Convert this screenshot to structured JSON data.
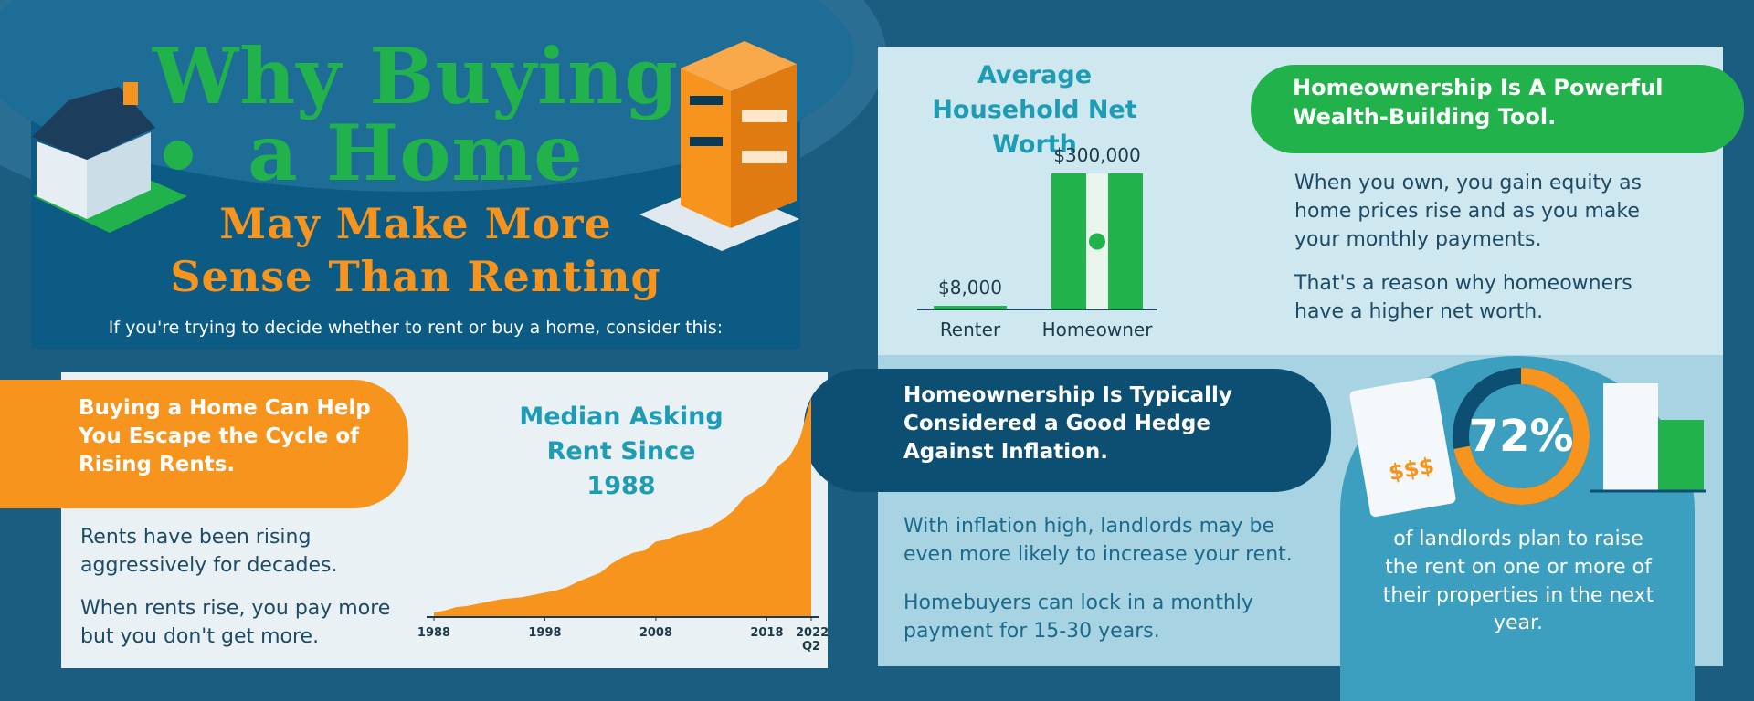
{
  "header": {
    "title_line1": "Why Buying",
    "title_line2": "a Home",
    "subtitle_line1": "May Make More",
    "subtitle_line2": "Sense Than Renting",
    "intro": "If you're trying to decide whether to rent or buy a home, consider this:"
  },
  "wealth": {
    "heading": "Homeownership Is A Powerful Wealth-Building Tool.",
    "paragraphs": [
      "When you own, you gain equity as home prices rise and as you make your monthly payments.",
      "That's a reason why homeowners have a higher net worth."
    ]
  },
  "rents": {
    "heading": "Buying a Home Can Help You Escape the Cycle of Rising Rents.",
    "paragraphs": [
      "Rents have been rising aggressively for decades.",
      "When rents rise, you pay more but you don't get more."
    ]
  },
  "inflation": {
    "heading": "Homeownership Is Typically Considered a Good Hedge Against Inflation.",
    "paragraphs": [
      "With inflation high, landlords may be even more likely to increase your rent.",
      "Homebuyers can lock in a monthly payment for 15-30 years."
    ],
    "icon_text": "$$$",
    "stat": {
      "value": 72,
      "value_label": "72%",
      "text": "of landlords plan to raise the rent on one or more of their properties in the next year."
    }
  },
  "chart_data": [
    {
      "type": "bar",
      "title": "Average Household Net Worth",
      "categories": [
        "Renter",
        "Homeowner"
      ],
      "values": [
        8000,
        300000
      ],
      "value_labels": [
        "$8,000",
        "$300,000"
      ],
      "color": "#22b24c"
    },
    {
      "type": "area",
      "title": "Median Asking Rent Since 1988",
      "x": [
        1988,
        1989,
        1990,
        1991,
        1992,
        1993,
        1994,
        1995,
        1996,
        1997,
        1998,
        1999,
        2000,
        2001,
        2002,
        2003,
        2004,
        2005,
        2006,
        2007,
        2008,
        2009,
        2010,
        2011,
        2012,
        2013,
        2014,
        2015,
        2016,
        2017,
        2018,
        2019,
        2020,
        2021,
        2022
      ],
      "values": [
        340,
        350,
        365,
        370,
        380,
        390,
        400,
        405,
        410,
        420,
        430,
        440,
        455,
        480,
        500,
        520,
        560,
        590,
        610,
        620,
        660,
        670,
        690,
        700,
        710,
        730,
        760,
        800,
        860,
        890,
        930,
        1000,
        1040,
        1130,
        1312
      ],
      "color": "#f7941d",
      "xlim": [
        1988,
        2022
      ],
      "xticks": [
        1988,
        1998,
        2008,
        2018,
        {
          "value": 2022,
          "label": "2022 Q2"
        }
      ],
      "ylim": [
        320,
        1320
      ]
    }
  ]
}
